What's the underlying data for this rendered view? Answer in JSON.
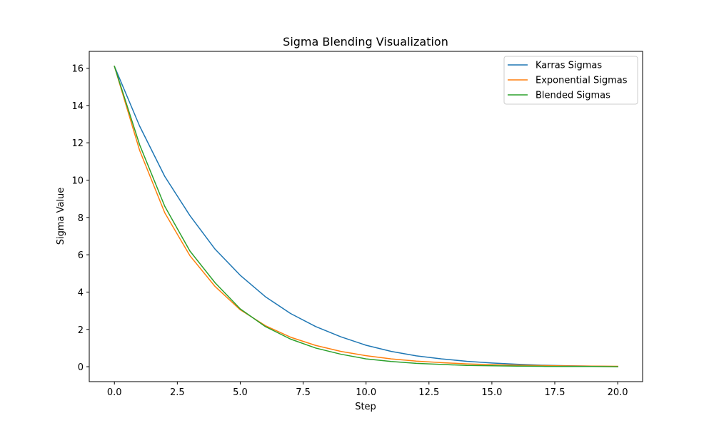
{
  "chart_data": {
    "type": "line",
    "title": "Sigma Blending Visualization",
    "xlabel": "Step",
    "ylabel": "Sigma Value",
    "xlim": [
      -1.0,
      20.99
    ],
    "ylim": [
      -0.8,
      16.9
    ],
    "xticks": [
      0,
      2.5,
      5,
      7.5,
      10,
      12.5,
      15,
      17.5,
      20
    ],
    "xtick_labels": [
      "0.0",
      "2.5",
      "5.0",
      "7.5",
      "10.0",
      "12.5",
      "15.0",
      "17.5",
      "20.0"
    ],
    "yticks": [
      0,
      2,
      4,
      6,
      8,
      10,
      12,
      14,
      16
    ],
    "ytick_labels": [
      "0",
      "2",
      "4",
      "6",
      "8",
      "10",
      "12",
      "14",
      "16"
    ],
    "grid": false,
    "legend_position": "top-right",
    "x": [
      0,
      1,
      2,
      3,
      4,
      5,
      6,
      7,
      8,
      9,
      10,
      11,
      12,
      13,
      14,
      15,
      16,
      17,
      18,
      19,
      20
    ],
    "series": [
      {
        "name": "Karras Sigmas",
        "color": "#1f77b4",
        "values": [
          16.1,
          12.9,
          10.2,
          8.1,
          6.3,
          4.9,
          3.75,
          2.85,
          2.15,
          1.6,
          1.15,
          0.82,
          0.58,
          0.42,
          0.29,
          0.2,
          0.13,
          0.08,
          0.05,
          0.03,
          0.01
        ]
      },
      {
        "name": "Exponential Sigmas",
        "color": "#ff7f0e",
        "values": [
          16.1,
          11.6,
          8.25,
          5.95,
          4.3,
          3.05,
          2.2,
          1.58,
          1.14,
          0.82,
          0.59,
          0.42,
          0.3,
          0.22,
          0.15,
          0.11,
          0.08,
          0.06,
          0.04,
          0.03,
          0.02
        ]
      },
      {
        "name": "Blended Sigmas",
        "color": "#2ca02c",
        "values": [
          16.1,
          11.9,
          8.6,
          6.2,
          4.5,
          3.1,
          2.15,
          1.48,
          1.0,
          0.67,
          0.42,
          0.28,
          0.18,
          0.12,
          0.07,
          0.05,
          0.03,
          0.02,
          0.01,
          0.01,
          0.0
        ]
      }
    ]
  }
}
